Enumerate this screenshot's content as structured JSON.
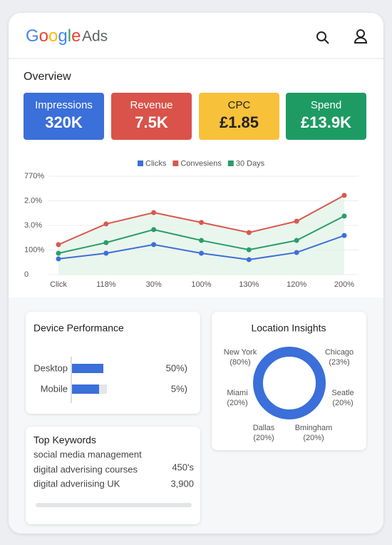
{
  "header": {
    "logo": "Google",
    "product": "Ads"
  },
  "overview": {
    "title": "Overview",
    "tiles": [
      {
        "label": "Impressions",
        "value": "320K",
        "color": "#3b6fd9"
      },
      {
        "label": "Revenue",
        "value": "7.5K",
        "color": "#d9534a"
      },
      {
        "label": "CPC",
        "value": "£1.85",
        "color": "#f8c13a"
      },
      {
        "label": "Spend",
        "value": "£13.9K",
        "color": "#1e9b63"
      }
    ]
  },
  "chart_data": {
    "type": "line",
    "categories": [
      "Click",
      "118%",
      "30%",
      "100%",
      "130%",
      "120%",
      "200%"
    ],
    "ylim": [
      0,
      4
    ],
    "yticks": [
      0,
      {
        "value": 1,
        "label": "100%"
      },
      {
        "value": 2,
        "label": "3.0%"
      },
      {
        "value": 3,
        "label": "2.0%"
      },
      {
        "value": 4,
        "label": "770%"
      }
    ],
    "grid": true,
    "series": [
      {
        "name": "Clicks",
        "color": "#3d6fd8",
        "values": [
          0.64,
          0.87,
          1.22,
          0.87,
          0.61,
          0.9,
          1.59
        ]
      },
      {
        "name": "Convesiens",
        "color": "#d9584e",
        "values": [
          1.22,
          2.06,
          2.52,
          2.12,
          1.71,
          2.17,
          3.22
        ]
      },
      {
        "name": "30 Days",
        "color": "#2a9d6a",
        "values": [
          0.87,
          1.3,
          1.83,
          1.39,
          1.01,
          1.39,
          2.38
        ]
      }
    ]
  },
  "device_performance": {
    "title": "Device Performance",
    "rows": [
      {
        "label": "Desktop",
        "value": "50%)"
      },
      {
        "label": "Mobile",
        "value": "5%)"
      }
    ]
  },
  "top_keywords": {
    "title": "Top Keywords",
    "rows": [
      {
        "keyword": "social media management"
      },
      {
        "keyword": "digital adverising courses",
        "value": "450's"
      },
      {
        "keyword": "digital adveriising UK",
        "value": "3,900"
      }
    ]
  },
  "location_insights": {
    "title": "Location Insights",
    "locations": [
      {
        "name": "New York",
        "share": "(80%)"
      },
      {
        "name": "Chicago",
        "share": "(23%)"
      },
      {
        "name": "Miami",
        "share": "(20%)"
      },
      {
        "name": "Seatle",
        "share": "(20%)"
      },
      {
        "name": "Dallas",
        "share": "(20%)"
      },
      {
        "name": "Bmingham",
        "share": "(20%)"
      }
    ]
  }
}
